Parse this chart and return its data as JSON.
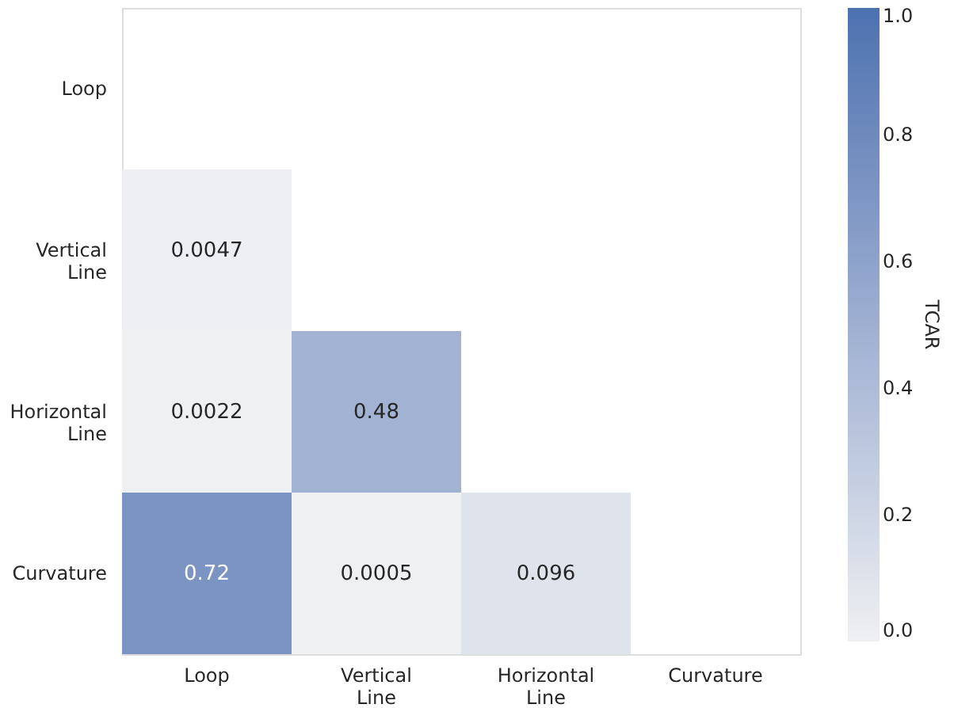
{
  "chart_data": {
    "type": "heatmap",
    "categories": [
      "Loop",
      "Vertical Line",
      "Horizontal Line",
      "Curvature"
    ],
    "y_categories": [
      "Loop",
      "Vertical Line",
      "Horizontal Line",
      "Curvature"
    ],
    "cells": [
      [
        null,
        null,
        null,
        null
      ],
      [
        0.0047,
        null,
        null,
        null
      ],
      [
        0.0022,
        0.48,
        null,
        null
      ],
      [
        0.72,
        0.0005,
        0.096,
        null
      ]
    ],
    "data_labels": true,
    "clabel": "TCAR",
    "clim": [
      0,
      1
    ],
    "cticks": [
      {
        "value": 0,
        "label": "0.0"
      },
      {
        "value": 0.2,
        "label": "0.2"
      },
      {
        "value": 0.4,
        "label": "0.4"
      },
      {
        "value": 0.6,
        "label": "0.6"
      },
      {
        "value": 0.8,
        "label": "0.8"
      },
      {
        "value": 1,
        "label": "1.0"
      }
    ]
  }
}
